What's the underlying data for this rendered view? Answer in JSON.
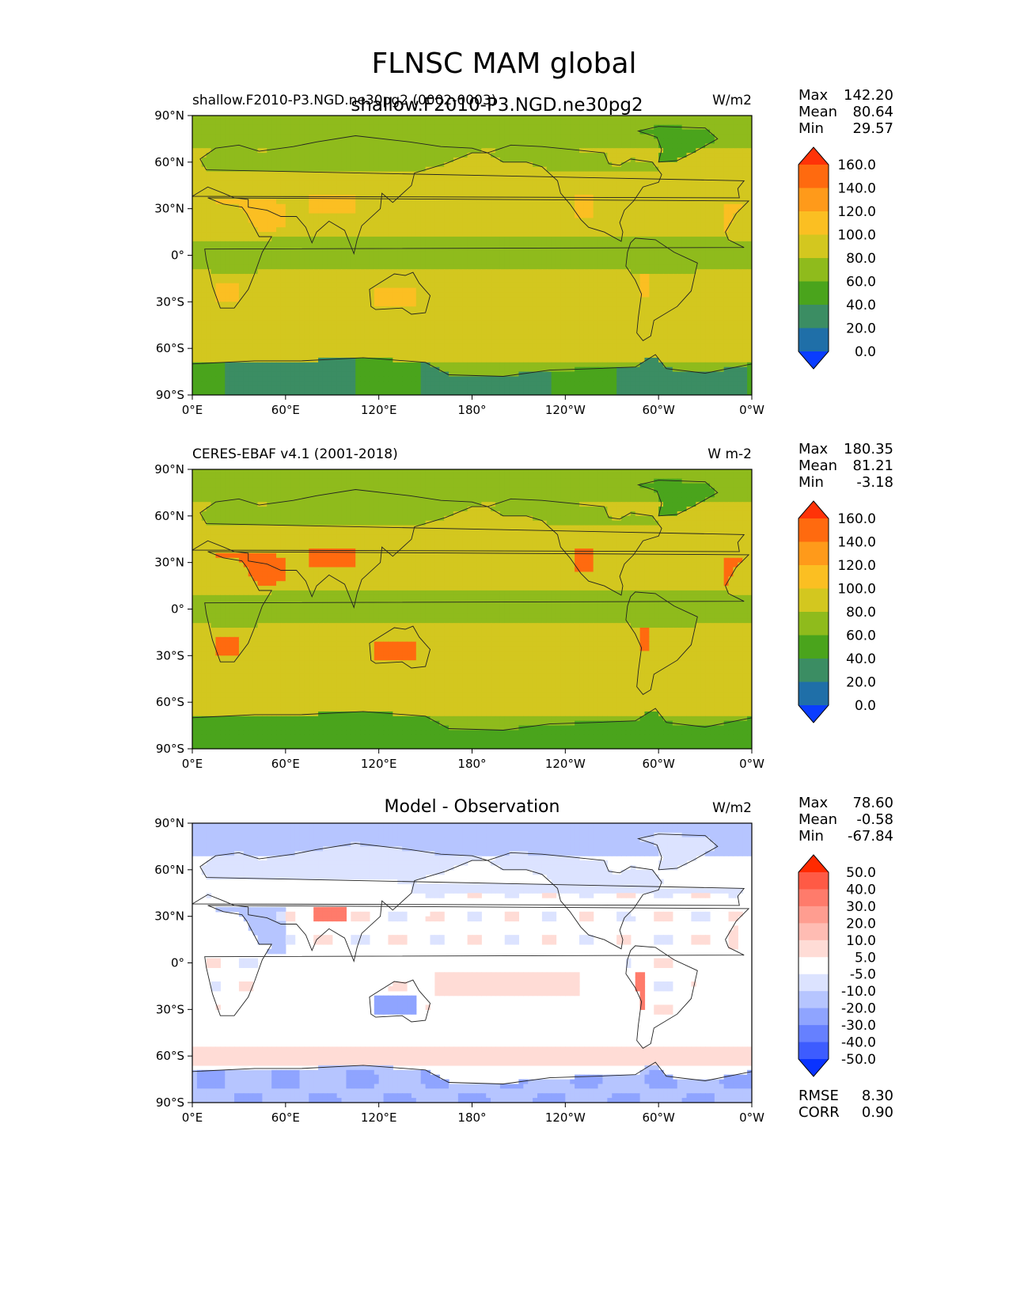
{
  "figure": {
    "title": "FLNSC MAM global",
    "overlay_title": "shallow.F2010-P3.NGD.ne30pg2"
  },
  "chart_data": [
    {
      "type": "heatmap",
      "projection": "PlateCarree, central_longitude 180",
      "title_left": "shallow.F2010-P3.NGD.ne30pg2 (0002-0003)",
      "title_center": "",
      "units": "W/m2",
      "stats": [
        {
          "label": "Max",
          "value": "142.20"
        },
        {
          "label": "Mean",
          "value": "80.64"
        },
        {
          "label": "Min",
          "value": "29.57"
        }
      ],
      "extra_stats": [],
      "colorbar": {
        "levels": [
          "160.0",
          "140.0",
          "120.0",
          "100.0",
          "80.0",
          "60.0",
          "40.0",
          "20.0",
          "0.0"
        ],
        "colors": [
          "#ff3308",
          "#ff6a0f",
          "#ff9a1a",
          "#fbbf22",
          "#d3c71f",
          "#8fbb1c",
          "#4aa41c",
          "#3b8d63",
          "#1f6fa8",
          "#0a3dff"
        ],
        "extend": "both"
      },
      "xticks": [
        "0°E",
        "60°E",
        "120°E",
        "180°",
        "120°W",
        "60°W",
        "0°W"
      ],
      "yticks": [
        "90°N",
        "60°N",
        "30°N",
        "0°",
        "30°S",
        "60°S",
        "90°S"
      ],
      "lon_range": [
        0,
        360
      ],
      "lat_range": [
        -90,
        90
      ],
      "field_summary": {
        "equator_ocean": "60-80",
        "subtropics_ocean": "80-100",
        "deserts": "100-140",
        "southern_ocean": "80-100",
        "antarctica": "20-60"
      }
    },
    {
      "type": "heatmap",
      "projection": "PlateCarree, central_longitude 180",
      "title_left": "CERES-EBAF v4.1 (2001-2018)",
      "title_center": "",
      "units": "W m-2",
      "stats": [
        {
          "label": "Max",
          "value": "180.35"
        },
        {
          "label": "Mean",
          "value": "81.21"
        },
        {
          "label": "Min",
          "value": "-3.18"
        }
      ],
      "extra_stats": [],
      "colorbar": {
        "levels": [
          "160.0",
          "140.0",
          "120.0",
          "100.0",
          "80.0",
          "60.0",
          "40.0",
          "20.0",
          "0.0"
        ],
        "colors": [
          "#ff3308",
          "#ff6a0f",
          "#ff9a1a",
          "#fbbf22",
          "#d3c71f",
          "#8fbb1c",
          "#4aa41c",
          "#3b8d63",
          "#1f6fa8",
          "#0a3dff"
        ],
        "extend": "both"
      },
      "xticks": [
        "0°E",
        "60°E",
        "120°E",
        "180°",
        "120°W",
        "60°W",
        "0°W"
      ],
      "yticks": [
        "90°N",
        "60°N",
        "30°N",
        "0°",
        "30°S",
        "60°S",
        "90°S"
      ],
      "lon_range": [
        0,
        360
      ],
      "lat_range": [
        -90,
        90
      ],
      "field_summary": {
        "equator_ocean": "60-80",
        "subtropics_ocean": "80-100",
        "deserts": "100-160",
        "southern_ocean": "80-100",
        "antarctica": "40-60"
      }
    },
    {
      "type": "heatmap",
      "projection": "PlateCarree, central_longitude 180",
      "title_left": "",
      "title_center": "Model - Observation",
      "units": "W/m2",
      "stats": [
        {
          "label": "Max",
          "value": "78.60"
        },
        {
          "label": "Mean",
          "value": "-0.58"
        },
        {
          "label": "Min",
          "value": "-67.84"
        }
      ],
      "extra_stats": [
        {
          "label": "RMSE",
          "value": "8.30"
        },
        {
          "label": "CORR",
          "value": "0.90"
        }
      ],
      "colorbar": {
        "levels": [
          "50.0",
          "40.0",
          "30.0",
          "20.0",
          "10.0",
          "5.0",
          "-5.0",
          "-10.0",
          "-20.0",
          "-30.0",
          "-40.0",
          "-50.0"
        ],
        "colors": [
          "#ff2a00",
          "#ff5a45",
          "#ff7b6b",
          "#ff9d90",
          "#ffbcb3",
          "#ffdcd6",
          "#ffffff",
          "#dce3ff",
          "#b6c5ff",
          "#8fa4ff",
          "#6680ff",
          "#3d5cff",
          "#0a33ff"
        ],
        "extend": "both"
      },
      "xticks": [
        "0°E",
        "60°E",
        "120°E",
        "180°",
        "120°W",
        "60°W",
        "0°W"
      ],
      "yticks": [
        "90°N",
        "60°N",
        "30°N",
        "0°",
        "30°S",
        "60°S",
        "90°S"
      ],
      "lon_range": [
        0,
        360
      ],
      "lat_range": [
        -90,
        90
      ],
      "field_summary": {
        "high_latitudes": "-20 to -5",
        "tropical_ocean": "5 to 10",
        "tibet_himalaya": "10 to 50",
        "andes": "20 to 50",
        "australia": "-20 to -10"
      }
    }
  ]
}
